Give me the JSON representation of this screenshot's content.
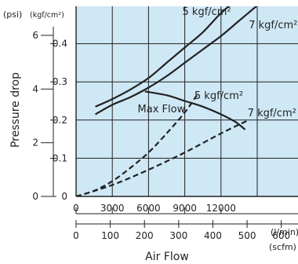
{
  "chart_data": {
    "type": "line",
    "title": "",
    "xlabel": "Air Flow",
    "ylabel": "Pressure drop",
    "x_units": [
      "(l/min)",
      "(scfm)"
    ],
    "y_units": [
      "(psi)",
      "(kgf/cm²)"
    ],
    "xlim": [
      0,
      15000
    ],
    "ylim": [
      0,
      0.5
    ],
    "grid": true,
    "plot_background": "#cfe8f6",
    "line_color": "#222222",
    "x_ticks_lmin": [
      {
        "value": 0,
        "label": "0"
      },
      {
        "value": 3000,
        "label": "3000"
      },
      {
        "value": 6000,
        "label": "6000"
      },
      {
        "value": 9000,
        "label": "9000"
      },
      {
        "value": 12000,
        "label": "12000"
      }
    ],
    "x_ticks_scfm": [
      {
        "value": 0,
        "label": "0"
      },
      {
        "value": 100,
        "label": "100"
      },
      {
        "value": 200,
        "label": "200"
      },
      {
        "value": 300,
        "label": "300"
      },
      {
        "value": 400,
        "label": "400"
      },
      {
        "value": 500,
        "label": "500"
      },
      {
        "value": 600,
        "label": "600"
      }
    ],
    "y_ticks_kgf": [
      {
        "value": 0,
        "label": "0"
      },
      {
        "value": 0.1,
        "label": "0.1"
      },
      {
        "value": 0.2,
        "label": "0.2"
      },
      {
        "value": 0.3,
        "label": "0.3"
      },
      {
        "value": 0.4,
        "label": "0.4"
      }
    ],
    "y_ticks_psi": [
      {
        "value": 0,
        "label": "0"
      },
      {
        "value": 2,
        "label": "2"
      },
      {
        "value": 4,
        "label": "4"
      },
      {
        "value": 6,
        "label": "6"
      }
    ],
    "series": [
      {
        "style": "solid",
        "x": [
          1600,
          3000,
          4500,
          6000,
          7500,
          9000,
          10500,
          12000,
          13500
        ],
        "y": [
          0.235,
          0.255,
          0.28,
          0.31,
          0.35,
          0.39,
          0.43,
          0.48,
          0.52
        ]
      },
      {
        "style": "solid",
        "x": [
          1600,
          3000,
          4500,
          6000,
          7500,
          9000,
          10500,
          12000,
          13500,
          15000
        ],
        "y": [
          0.215,
          0.24,
          0.26,
          0.285,
          0.315,
          0.35,
          0.385,
          0.42,
          0.46,
          0.5
        ]
      },
      {
        "style": "solid",
        "x": [
          5700,
          7500,
          9000,
          10500,
          12000,
          13200,
          14000
        ],
        "y": [
          0.275,
          0.265,
          0.25,
          0.235,
          0.215,
          0.195,
          0.175
        ]
      },
      {
        "style": "dashed",
        "x": [
          0,
          1500,
          3000,
          4500,
          6000,
          7500,
          9000,
          10000
        ],
        "y": [
          0,
          0.015,
          0.04,
          0.075,
          0.115,
          0.165,
          0.22,
          0.265
        ]
      },
      {
        "style": "dashed",
        "x": [
          0,
          3000,
          6000,
          9000,
          12000,
          14300
        ],
        "y": [
          0,
          0.03,
          0.07,
          0.115,
          0.165,
          0.2
        ]
      }
    ],
    "annotations": [
      {
        "text": "5 kgf/cm²",
        "x": 8800,
        "y": 0.475
      },
      {
        "text": "7 kgf/cm²",
        "x": 14300,
        "y": 0.44
      },
      {
        "text": "5 kgf/cm²",
        "x": 9800,
        "y": 0.255
      },
      {
        "text": "7 kgf/cm²",
        "x": 14200,
        "y": 0.21
      },
      {
        "text": "Max Flow",
        "x": 5100,
        "y": 0.22
      }
    ]
  }
}
